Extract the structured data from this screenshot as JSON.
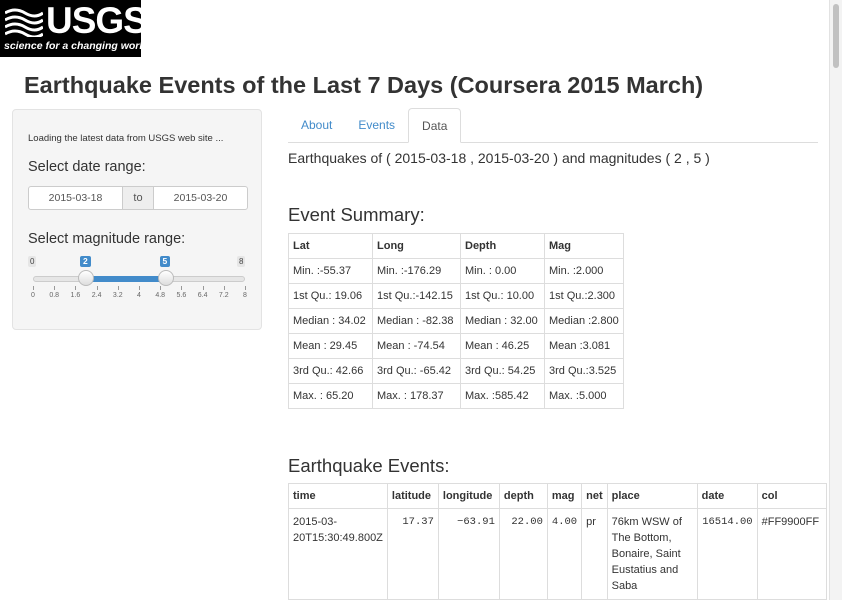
{
  "logo": {
    "text": "USGS",
    "tagline": "science for a changing world"
  },
  "page_title": "Earthquake Events of the Last 7 Days (Coursera 2015 March)",
  "sidebar": {
    "loading_text": "Loading the latest data from USGS web site ...",
    "date_label": "Select date range:",
    "date_start": "2015-03-18",
    "date_to": "to",
    "date_end": "2015-03-20",
    "mag_label": "Select magnitude range:",
    "slider": {
      "min": 0,
      "max": 8,
      "low": 2,
      "high": 5,
      "min_label": "0",
      "max_label": "8",
      "low_label": "2",
      "high_label": "5",
      "accent": "#428bca",
      "tick_labels": [
        "0",
        "0.8",
        "1.6",
        "2.4",
        "3.2",
        "4",
        "4.8",
        "5.6",
        "6.4",
        "7.2",
        "8"
      ]
    }
  },
  "tabs": [
    {
      "label": "About",
      "active": false
    },
    {
      "label": "Events",
      "active": false
    },
    {
      "label": "Data",
      "active": true
    }
  ],
  "subtitle": "Earthquakes of ( 2015-03-18 , 2015-03-20 ) and magnitudes ( 2 , 5 )",
  "summary": {
    "heading": "Event Summary:",
    "headers": [
      "Lat",
      "Long",
      "Depth",
      "Mag"
    ],
    "rows": [
      [
        "Min. :-55.37",
        "Min. :-176.29",
        "Min. : 0.00",
        "Min. :2.000"
      ],
      [
        "1st Qu.: 19.06",
        "1st Qu.:-142.15",
        "1st Qu.: 10.00",
        "1st Qu.:2.300"
      ],
      [
        "Median : 34.02",
        "Median : -82.38",
        "Median : 32.00",
        "Median :2.800"
      ],
      [
        "Mean : 29.45",
        "Mean : -74.54",
        "Mean : 46.25",
        "Mean :3.081"
      ],
      [
        "3rd Qu.: 42.66",
        "3rd Qu.: -65.42",
        "3rd Qu.: 54.25",
        "3rd Qu.:3.525"
      ],
      [
        "Max. : 65.20",
        "Max. : 178.37",
        "Max. :585.42",
        "Max. :5.000"
      ]
    ]
  },
  "events": {
    "heading": "Earthquake Events:",
    "headers": [
      "time",
      "latitude",
      "longitude",
      "depth",
      "mag",
      "net",
      "place",
      "date",
      "col"
    ],
    "rows": [
      {
        "time": "2015-03-20T15:30:49.800Z",
        "latitude": "17.37",
        "longitude": "−63.91",
        "depth": "22.00",
        "mag": "4.00",
        "net": "pr",
        "place": "76km WSW of The Bottom, Bonaire, Saint Eustatius and Saba",
        "date": "16514.00",
        "col": "#FF9900FF"
      }
    ]
  }
}
